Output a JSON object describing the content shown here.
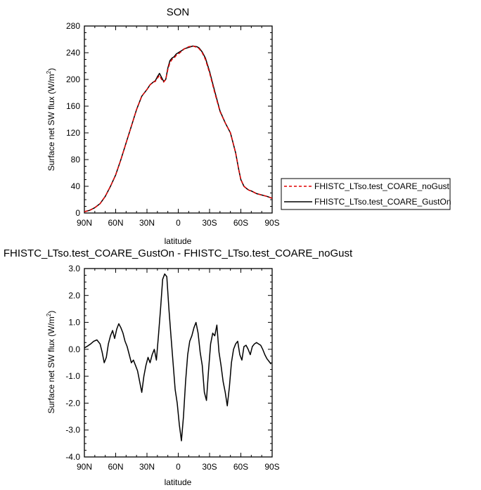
{
  "chart_data": [
    {
      "type": "line",
      "title": "SON",
      "xlabel": "latitude",
      "ylabel_main": "Surface net SW flux (W/m",
      "ylabel_sup": "2",
      "ylabel_close": ")",
      "xlim": [
        90,
        -90
      ],
      "ylim": [
        0,
        280
      ],
      "xticks": [
        90,
        60,
        30,
        0,
        -30,
        -60,
        -90
      ],
      "xtick_labels": [
        "90N",
        "60N",
        "30N",
        "0",
        "30S",
        "60S",
        "90S"
      ],
      "yticks": [
        0,
        40,
        80,
        120,
        160,
        200,
        240,
        280
      ],
      "ytick_labels": [
        "0",
        "40",
        "80",
        "120",
        "160",
        "200",
        "240",
        "280"
      ],
      "legend_position": "right",
      "series": [
        {
          "name": "FHISTC_LTso.test_COARE_noGust",
          "color": "#e00000",
          "dash": "dashed",
          "x": [
            90,
            85,
            80,
            75,
            70,
            65,
            60,
            55,
            50,
            45,
            40,
            35,
            30,
            27,
            24,
            22,
            20,
            18,
            16,
            14,
            12,
            10,
            8,
            6,
            4,
            2,
            0,
            -3,
            -6,
            -10,
            -14,
            -18,
            -20,
            -23,
            -26,
            -30,
            -35,
            -40,
            -45,
            -50,
            -55,
            -58,
            -60,
            -63,
            -66,
            -68,
            -70,
            -75,
            -80,
            -85,
            -90
          ],
          "y": [
            2,
            4,
            8,
            14,
            25,
            40,
            57,
            80,
            105,
            130,
            155,
            175,
            185,
            192,
            196,
            197,
            202,
            206,
            200,
            196,
            200,
            215,
            225,
            230,
            232,
            236,
            238,
            242,
            246,
            249,
            250,
            248,
            246,
            240,
            230,
            210,
            180,
            152,
            135,
            120,
            90,
            65,
            50,
            40,
            36,
            34,
            33,
            29,
            27,
            25,
            22
          ]
        },
        {
          "name": "FHISTC_LTso.test_COARE_GustOn",
          "color": "#000000",
          "dash": "solid",
          "x": [
            90,
            85,
            80,
            75,
            70,
            65,
            60,
            55,
            50,
            45,
            40,
            35,
            30,
            27,
            24,
            22,
            20,
            18,
            16,
            14,
            12,
            10,
            8,
            6,
            4,
            2,
            0,
            -3,
            -6,
            -10,
            -14,
            -18,
            -20,
            -23,
            -26,
            -30,
            -35,
            -40,
            -45,
            -50,
            -55,
            -58,
            -60,
            -63,
            -66,
            -68,
            -70,
            -75,
            -80,
            -85,
            -90
          ],
          "y": [
            2,
            4,
            8,
            14,
            25,
            40,
            57,
            80,
            105,
            130,
            155,
            175,
            185,
            192,
            196,
            198,
            204,
            209,
            203,
            197,
            200,
            217,
            228,
            232,
            234,
            238,
            240,
            243,
            246,
            248,
            250,
            249,
            247,
            241,
            232,
            212,
            182,
            153,
            135,
            120,
            90,
            65,
            50,
            40,
            36,
            34,
            33,
            29,
            27,
            25,
            22
          ]
        }
      ]
    },
    {
      "type": "line",
      "title": "FHISTC_LTso.test_COARE_GustOn - FHISTC_LTso.test_COARE_noGust",
      "xlabel": "latitude",
      "ylabel_main": "Surface net SW flux (W/m",
      "ylabel_sup": "2",
      "ylabel_close": ")",
      "xlim": [
        90,
        -90
      ],
      "ylim": [
        -4.0,
        3.0
      ],
      "xticks": [
        90,
        60,
        30,
        0,
        -30,
        -60,
        -90
      ],
      "xtick_labels": [
        "90N",
        "60N",
        "30N",
        "0",
        "30S",
        "60S",
        "90S"
      ],
      "yticks": [
        -4,
        -3,
        -2,
        -1,
        0,
        1,
        2,
        3
      ],
      "ytick_labels": [
        "-4.0",
        "-3.0",
        "-2.0",
        "-1.0",
        "0.0",
        "1.0",
        "2.0",
        "3.0"
      ],
      "series": [
        {
          "name": "",
          "color": "#000000",
          "x": [
            90,
            87,
            84,
            81,
            78,
            75,
            73,
            71,
            69,
            67,
            65,
            63,
            61,
            59,
            57,
            55,
            53,
            51,
            49,
            47,
            45,
            43,
            41,
            39,
            37,
            35,
            33,
            31,
            29,
            27,
            25,
            23,
            21,
            19,
            17,
            15,
            13,
            11,
            9,
            7,
            5,
            3,
            1,
            -1,
            -3,
            -5,
            -7,
            -9,
            -11,
            -13,
            -15,
            -17,
            -19,
            -21,
            -23,
            -25,
            -27,
            -29,
            -31,
            -33,
            -35,
            -37,
            -39,
            -41,
            -43,
            -45,
            -47,
            -49,
            -51,
            -53,
            -55,
            -57,
            -59,
            -61,
            -63,
            -65,
            -67,
            -69,
            -71,
            -73,
            -75,
            -77,
            -79,
            -81,
            -83,
            -85,
            -87,
            -89
          ],
          "y": [
            0.05,
            0.12,
            0.2,
            0.3,
            0.35,
            0.2,
            -0.1,
            -0.5,
            -0.3,
            0.2,
            0.5,
            0.7,
            0.4,
            0.75,
            0.95,
            0.8,
            0.6,
            0.3,
            0.1,
            -0.2,
            -0.5,
            -0.4,
            -0.6,
            -0.8,
            -1.2,
            -1.6,
            -1.0,
            -0.6,
            -0.3,
            -0.5,
            -0.2,
            0.0,
            -0.4,
            0.5,
            1.5,
            2.6,
            2.8,
            2.7,
            1.5,
            0.5,
            -0.5,
            -1.5,
            -2.0,
            -2.8,
            -3.4,
            -2.5,
            -1.2,
            -0.2,
            0.3,
            0.5,
            0.8,
            1.0,
            0.6,
            -0.1,
            -0.6,
            -1.6,
            -1.9,
            -0.8,
            0.2,
            0.6,
            0.5,
            0.9,
            -0.1,
            -0.6,
            -1.2,
            -1.6,
            -2.1,
            -1.4,
            -0.5,
            0.0,
            0.2,
            0.3,
            -0.2,
            -0.4,
            0.1,
            0.15,
            0.0,
            -0.2,
            0.1,
            0.2,
            0.25,
            0.2,
            0.15,
            0.0,
            -0.2,
            -0.35,
            -0.45,
            -0.55
          ]
        }
      ]
    }
  ]
}
